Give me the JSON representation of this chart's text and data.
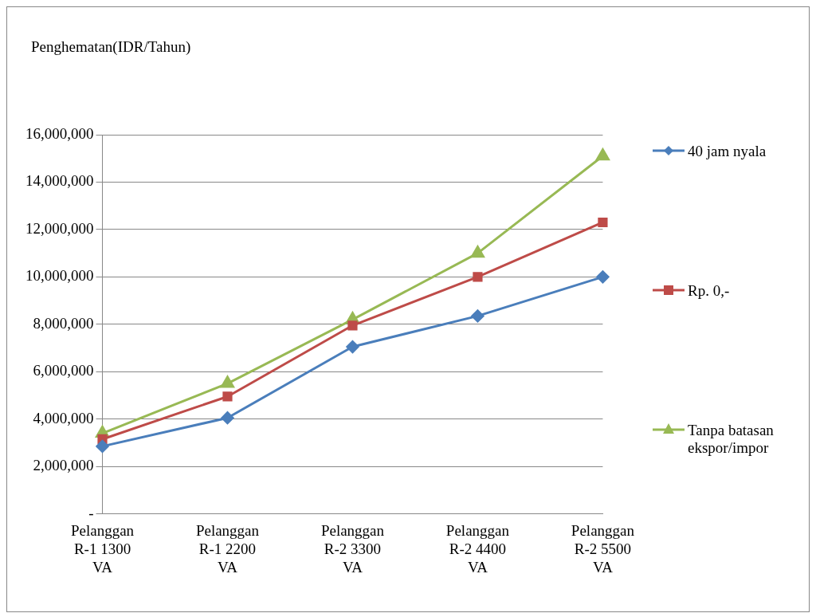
{
  "chart_data": {
    "type": "line",
    "ylabel": "Penghematan(IDR/Tahun)",
    "categories": [
      "Pelanggan R-1 1300 VA",
      "Pelanggan R-1 2200 VA",
      "Pelanggan R-2 3300 VA",
      "Pelanggan R-2 4400 VA",
      "Pelanggan R-2 5500 VA"
    ],
    "series": [
      {
        "name": "40 jam nyala",
        "color": "#4a7ebb",
        "marker": "diamond",
        "values": [
          2850000,
          4050000,
          7050000,
          8350000,
          10000000
        ]
      },
      {
        "name": "Rp. 0,-",
        "color": "#be4b48",
        "marker": "square",
        "values": [
          3150000,
          4950000,
          7950000,
          10000000,
          12300000
        ]
      },
      {
        "name": "Tanpa batasan ekspor/impor",
        "color": "#98b954",
        "marker": "triangle",
        "values": [
          3400000,
          5500000,
          8200000,
          11000000,
          15100000
        ]
      }
    ],
    "ylim": [
      0,
      16000000
    ],
    "yticks": [
      {
        "value": 0,
        "label": "-"
      },
      {
        "value": 2000000,
        "label": "2,000,000"
      },
      {
        "value": 4000000,
        "label": "4,000,000"
      },
      {
        "value": 6000000,
        "label": "6,000,000"
      },
      {
        "value": 8000000,
        "label": "8,000,000"
      },
      {
        "value": 10000000,
        "label": "10,000,000"
      },
      {
        "value": 12000000,
        "label": "12,000,000"
      },
      {
        "value": 14000000,
        "label": "14,000,000"
      },
      {
        "value": 16000000,
        "label": "16,000,000"
      }
    ],
    "grid": "y",
    "legend": "right",
    "line_style": "solid"
  }
}
